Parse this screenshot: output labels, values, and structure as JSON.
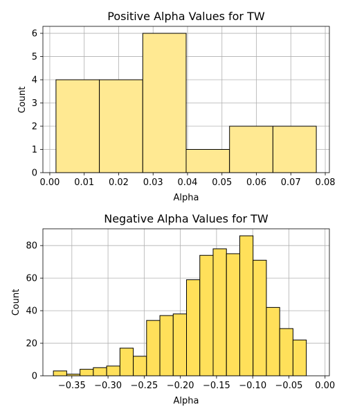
{
  "chart_data": [
    {
      "type": "bar",
      "title": "Positive Alpha Values for TW",
      "xlabel": "Alpha",
      "ylabel": "Count",
      "bins": [
        {
          "x0": 0.0018,
          "x1": 0.0144,
          "count": 4
        },
        {
          "x0": 0.0144,
          "x1": 0.027,
          "count": 4
        },
        {
          "x0": 0.027,
          "x1": 0.0396,
          "count": 6
        },
        {
          "x0": 0.0396,
          "x1": 0.0522,
          "count": 1
        },
        {
          "x0": 0.0522,
          "x1": 0.0648,
          "count": 2
        },
        {
          "x0": 0.0648,
          "x1": 0.0774,
          "count": 2
        }
      ],
      "xlim": [
        -0.002,
        0.0812
      ],
      "ylim": [
        0,
        6.3
      ],
      "xticks": [
        0.0,
        0.01,
        0.02,
        0.03,
        0.04,
        0.05,
        0.06,
        0.07,
        0.08
      ],
      "xtick_labels": [
        "0.00",
        "0.01",
        "0.02",
        "0.03",
        "0.04",
        "0.05",
        "0.06",
        "0.07",
        "0.08"
      ],
      "yticks": [
        0,
        1,
        2,
        3,
        4,
        5,
        6
      ],
      "ytick_labels": [
        "0",
        "1",
        "2",
        "3",
        "4",
        "5",
        "6"
      ],
      "grid": true,
      "color": "#ffe992"
    },
    {
      "type": "bar",
      "title": "Negative Alpha Values for TW",
      "xlabel": "Alpha",
      "ylabel": "Count",
      "bin_start": -0.3755,
      "bin_width": 0.0184,
      "counts": [
        3,
        1,
        4,
        5,
        6,
        17,
        12,
        34,
        37,
        38,
        59,
        74,
        78,
        75,
        86,
        71,
        42,
        29,
        22
      ],
      "xlim": [
        -0.39,
        0.006
      ],
      "ylim": [
        0,
        90.3
      ],
      "xticks": [
        -0.35,
        -0.3,
        -0.25,
        -0.2,
        -0.15,
        -0.1,
        -0.05,
        0.0
      ],
      "xtick_labels": [
        "−0.35",
        "−0.30",
        "−0.25",
        "−0.20",
        "−0.15",
        "−0.10",
        "−0.05",
        "0.00"
      ],
      "yticks": [
        0,
        20,
        40,
        60,
        80
      ],
      "ytick_labels": [
        "0",
        "20",
        "40",
        "60",
        "80"
      ],
      "grid": true,
      "color": "#ffe05a"
    }
  ]
}
